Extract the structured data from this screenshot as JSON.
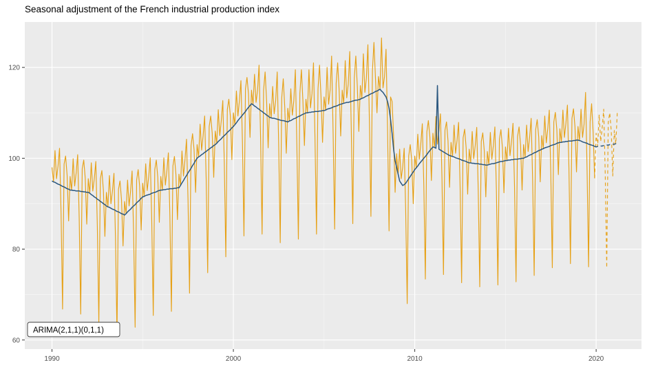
{
  "title": "Seasonal adjustment of the French industrial production index",
  "chart_data": {
    "type": "line",
    "title": "Seasonal adjustment of the French industrial production index",
    "annotation": "ARIMA(2,1,1)(0,1,1)",
    "xlabel": "",
    "ylabel": "",
    "panel_bg": "#EBEBEB",
    "grid_major_color": "#FFFFFF",
    "grid_minor_color": "#FFFFFF",
    "tick_label_color": "#4D4D4D",
    "tick_mark_color": "#333333",
    "x_axis": {
      "ticks": [
        1990,
        2000,
        2010,
        2020
      ],
      "minor": [
        1995,
        2005,
        2015
      ],
      "range": [
        1988.5,
        2022.5
      ]
    },
    "y_axis": {
      "ticks": [
        60,
        80,
        100,
        120
      ],
      "minor": [
        70,
        90,
        110
      ],
      "range": [
        58,
        130
      ]
    },
    "x_start": 1990,
    "frequency": 12,
    "forecast_x_start": 2020,
    "legend": "none",
    "series": [
      {
        "name": "Observed industrial production index",
        "slug": "observed-line",
        "color": "#E6A117",
        "width": 1.15,
        "values_by_year": [
          [
            98.0,
            94.8,
            101.7,
            95.5,
            98.3,
            102.2,
            88.0,
            66.8,
            98.7,
            100.5,
            96.3,
            86.2
          ],
          [
            96.0,
            93.0,
            99.9,
            93.9,
            96.8,
            100.8,
            86.8,
            65.7,
            97.7,
            99.6,
            95.6,
            85.5
          ],
          [
            95.5,
            92.3,
            99.0,
            92.8,
            95.5,
            99.3,
            85.0,
            63.8,
            95.5,
            97.3,
            93.0,
            82.8
          ],
          [
            92.5,
            89.3,
            96.2,
            90.0,
            92.8,
            96.7,
            82.5,
            61.3,
            93.2,
            95.0,
            90.8,
            80.7
          ],
          [
            90.5,
            87.8,
            95.2,
            89.5,
            92.8,
            97.2,
            83.5,
            62.8,
            95.2,
            97.5,
            93.8,
            84.2
          ],
          [
            94.5,
            91.6,
            98.8,
            92.9,
            96.0,
            100.1,
            86.3,
            65.4,
            97.5,
            99.6,
            95.8,
            85.9
          ],
          [
            96.0,
            93.0,
            100.1,
            94.1,
            97.2,
            101.2,
            87.3,
            66.3,
            98.3,
            100.4,
            96.4,
            86.5
          ],
          [
            96.5,
            94.0,
            101.6,
            96.1,
            99.7,
            104.2,
            90.8,
            70.3,
            102.8,
            105.4,
            101.9,
            92.5
          ],
          [
            103.0,
            100.3,
            107.5,
            101.8,
            105.0,
            109.3,
            95.5,
            74.8,
            107.0,
            109.3,
            105.5,
            95.8
          ],
          [
            106.0,
            103.3,
            110.7,
            105.0,
            108.3,
            112.7,
            99.0,
            78.3,
            110.7,
            113.0,
            109.3,
            99.7
          ],
          [
            110.0,
            107.4,
            114.8,
            109.3,
            112.7,
            117.1,
            103.5,
            82.9,
            115.3,
            117.8,
            114.2,
            104.6
          ],
          [
            115.0,
            111.8,
            118.5,
            112.3,
            115.0,
            120.5,
            104.5,
            83.3,
            115.0,
            119.0,
            112.5,
            102.3
          ],
          [
            112.0,
            108.9,
            115.8,
            109.8,
            112.7,
            119.0,
            102.5,
            81.4,
            113.3,
            117.5,
            111.2,
            101.1
          ],
          [
            111.0,
            108.2,
            115.3,
            109.5,
            112.7,
            119.5,
            103.0,
            82.2,
            114.3,
            119.5,
            112.7,
            102.8
          ],
          [
            113.0,
            110.0,
            119.5,
            111.1,
            114.2,
            121.0,
            104.3,
            83.3,
            115.3,
            120.5,
            113.4,
            103.5
          ],
          [
            113.5,
            110.6,
            120.0,
            111.9,
            115.0,
            122.5,
            105.3,
            84.4,
            116.5,
            121.0,
            114.8,
            104.9
          ],
          [
            115.0,
            112.1,
            121.5,
            113.3,
            116.3,
            123.5,
            106.5,
            85.6,
            117.7,
            122.5,
            115.8,
            105.9
          ],
          [
            116.0,
            113.2,
            123.0,
            114.5,
            117.7,
            125.0,
            108.0,
            87.2,
            119.3,
            125.5,
            117.7,
            110.0
          ],
          [
            118.0,
            115.2,
            126.5,
            115.5,
            118.0,
            124.0,
            106.5,
            84.0,
            113.5,
            112.5,
            105.0,
            92.5
          ],
          [
            101.0,
            96.5,
            102.0,
            95.5,
            98.0,
            102.2,
            88.5,
            68.0,
            100.5,
            103.0,
            99.5,
            90.0
          ],
          [
            100.5,
            97.9,
            105.3,
            99.8,
            103.2,
            107.6,
            94.0,
            73.4,
            105.8,
            108.3,
            104.7,
            95.1
          ],
          [
            105.5,
            102.4,
            109.2,
            103.1,
            106.0,
            109.8,
            95.6,
            74.4,
            106.2,
            108.0,
            103.8,
            93.6
          ],
          [
            103.5,
            100.4,
            107.3,
            101.1,
            104.0,
            107.9,
            93.8,
            72.6,
            104.5,
            106.4,
            102.3,
            92.1
          ],
          [
            102.0,
            99.0,
            105.9,
            99.9,
            102.8,
            106.8,
            92.8,
            71.7,
            103.7,
            105.6,
            101.6,
            91.5
          ],
          [
            101.5,
            98.6,
            105.7,
            99.8,
            102.8,
            106.9,
            93.0,
            72.1,
            104.2,
            106.3,
            102.3,
            92.4
          ],
          [
            102.5,
            99.5,
            106.6,
            100.6,
            103.7,
            107.7,
            93.8,
            72.8,
            104.8,
            106.9,
            102.9,
            93.0
          ],
          [
            103.0,
            100.2,
            107.3,
            101.5,
            104.7,
            108.8,
            95.0,
            74.2,
            106.3,
            108.5,
            104.7,
            94.8
          ],
          [
            105.0,
            102.1,
            109.3,
            103.4,
            106.5,
            110.6,
            96.8,
            75.9,
            108.0,
            110.1,
            106.3,
            96.4
          ],
          [
            106.5,
            103.5,
            110.6,
            104.6,
            107.7,
            111.7,
            97.8,
            76.8,
            108.8,
            110.9,
            106.9,
            97.0
          ],
          [
            107.0,
            103.9,
            110.8,
            104.6,
            107.5,
            114.5,
            97.3,
            76.1,
            108.0,
            112.0,
            105.8,
            95.6
          ]
        ]
      },
      {
        "name": "Seasonally adjusted index",
        "slug": "seasonally-adjusted-line",
        "color": "#29567E",
        "width": 1.5,
        "values_by_year": [
          [
            95.0,
            94.8,
            94.7,
            94.5,
            94.3,
            94.2,
            94.0,
            93.8,
            93.7,
            93.5,
            93.3,
            93.2
          ],
          [
            93.0,
            93.0,
            92.9,
            92.9,
            92.8,
            92.8,
            92.8,
            92.7,
            92.7,
            92.6,
            92.6,
            92.5
          ],
          [
            92.5,
            92.3,
            92.0,
            91.8,
            91.5,
            91.3,
            91.0,
            90.8,
            90.5,
            90.3,
            90.0,
            89.8
          ],
          [
            89.5,
            89.3,
            89.2,
            89.0,
            88.8,
            88.7,
            88.5,
            88.3,
            88.2,
            88.0,
            87.8,
            87.7
          ],
          [
            87.5,
            87.8,
            88.2,
            88.5,
            88.8,
            89.2,
            89.5,
            89.8,
            90.2,
            90.5,
            90.8,
            91.2
          ],
          [
            91.5,
            91.6,
            91.8,
            91.9,
            92.0,
            92.1,
            92.3,
            92.4,
            92.5,
            92.6,
            92.8,
            92.9
          ],
          [
            93.0,
            93.0,
            93.1,
            93.1,
            93.2,
            93.2,
            93.3,
            93.3,
            93.3,
            93.4,
            93.4,
            93.5
          ],
          [
            93.5,
            94.0,
            94.6,
            95.1,
            95.7,
            96.2,
            96.8,
            97.3,
            97.8,
            98.4,
            98.9,
            99.5
          ],
          [
            100.0,
            100.3,
            100.5,
            100.8,
            101.0,
            101.3,
            101.5,
            101.8,
            102.0,
            102.3,
            102.5,
            102.8
          ],
          [
            103.0,
            103.3,
            103.7,
            104.0,
            104.3,
            104.7,
            105.0,
            105.3,
            105.7,
            106.0,
            106.3,
            106.7
          ],
          [
            107.0,
            107.4,
            107.8,
            108.3,
            108.7,
            109.1,
            109.5,
            109.9,
            110.3,
            110.8,
            111.2,
            111.6
          ],
          [
            112.0,
            111.8,
            111.5,
            111.3,
            111.0,
            110.8,
            110.5,
            110.3,
            110.0,
            109.8,
            109.5,
            109.3
          ],
          [
            109.0,
            108.9,
            108.8,
            108.8,
            108.7,
            108.6,
            108.5,
            108.4,
            108.3,
            108.3,
            108.2,
            108.1
          ],
          [
            108.0,
            108.2,
            108.3,
            108.5,
            108.7,
            108.8,
            109.0,
            109.2,
            109.3,
            109.5,
            109.7,
            109.8
          ],
          [
            110.0,
            110.0,
            110.1,
            110.1,
            110.2,
            110.2,
            110.3,
            110.3,
            110.3,
            110.4,
            110.4,
            110.5
          ],
          [
            110.5,
            110.6,
            110.8,
            110.9,
            111.0,
            111.1,
            111.3,
            111.4,
            111.5,
            111.6,
            111.8,
            111.9
          ],
          [
            112.0,
            112.1,
            112.2,
            112.3,
            112.3,
            112.4,
            112.5,
            112.6,
            112.7,
            112.8,
            112.8,
            112.9
          ],
          [
            113.0,
            113.2,
            113.3,
            113.5,
            113.7,
            113.8,
            114.0,
            114.2,
            114.3,
            114.5,
            114.7,
            114.8
          ],
          [
            115.0,
            115.2,
            114.8,
            114.5,
            114.0,
            113.5,
            112.5,
            111.0,
            108.5,
            105.5,
            102.0,
            99.5
          ],
          [
            98.0,
            96.5,
            95.0,
            94.5,
            94.0,
            94.2,
            94.5,
            95.0,
            95.5,
            96.0,
            96.5,
            97.0
          ],
          [
            97.5,
            97.9,
            98.3,
            98.8,
            99.2,
            99.6,
            100.0,
            100.4,
            100.8,
            101.3,
            101.7,
            102.1
          ],
          [
            102.5,
            102.4,
            102.2,
            116.0,
            102.0,
            101.8,
            101.6,
            101.4,
            101.2,
            101.0,
            100.8,
            100.6
          ],
          [
            100.5,
            100.4,
            100.3,
            100.1,
            100.0,
            99.9,
            99.8,
            99.6,
            99.5,
            99.4,
            99.3,
            99.1
          ],
          [
            99.0,
            99.0,
            98.9,
            98.9,
            98.8,
            98.8,
            98.8,
            98.7,
            98.7,
            98.6,
            98.6,
            98.5
          ],
          [
            98.5,
            98.6,
            98.7,
            98.8,
            98.8,
            98.9,
            99.0,
            99.1,
            99.2,
            99.3,
            99.3,
            99.4
          ],
          [
            99.5,
            99.5,
            99.6,
            99.6,
            99.7,
            99.7,
            99.8,
            99.8,
            99.8,
            99.9,
            99.9,
            100.0
          ],
          [
            100.0,
            100.2,
            100.3,
            100.5,
            100.7,
            100.8,
            101.0,
            101.2,
            101.3,
            101.5,
            101.7,
            101.8
          ],
          [
            102.0,
            102.1,
            102.3,
            102.4,
            102.5,
            102.6,
            102.8,
            102.9,
            103.0,
            103.1,
            103.3,
            103.4
          ],
          [
            103.5,
            103.5,
            103.6,
            103.6,
            103.7,
            103.7,
            103.8,
            103.8,
            103.8,
            103.9,
            103.9,
            104.0
          ],
          [
            104.0,
            103.9,
            103.8,
            103.6,
            103.5,
            103.4,
            103.3,
            103.1,
            103.0,
            102.9,
            102.8,
            102.6
          ]
        ]
      }
    ],
    "forecast_series": [
      {
        "name": "Observed index forecast",
        "slug": "observed-forecast-line",
        "color": "#E6A117",
        "width": 1.15,
        "values": [
          105.5,
          102.6,
          109.6,
          103.7,
          106.7,
          110.8,
          96.8,
          75.9,
          107.9,
          110.0,
          106.0,
          96.1,
          106.1,
          103.2,
          110.2
        ]
      },
      {
        "name": "Seasonally adjusted forecast",
        "slug": "seasonally-adjusted-forecast-line",
        "color": "#29567E",
        "width": 1.5,
        "values": [
          102.5,
          102.6,
          102.6,
          102.7,
          102.7,
          102.8,
          102.8,
          102.9,
          102.9,
          103.0,
          103.0,
          103.1,
          103.1,
          103.2,
          103.2
        ]
      }
    ]
  }
}
